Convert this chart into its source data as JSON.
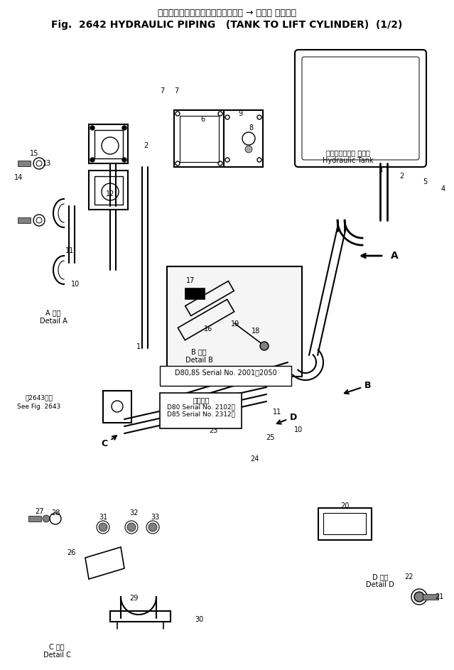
{
  "title_japanese": "ハイドロリックパイピング　タンク → リフト シリンダ",
  "title_english": "Fig.  2642 HYDRAULIC PIPING   (TANK TO LIFT CYLINDER)  (1/2)",
  "bg_color": "#ffffff",
  "line_color": "#000000",
  "fig_width": 6.39,
  "fig_height": 9.43,
  "dpi": 100,
  "hydraulic_tank_label_jp": "ハイドロリック タンク",
  "hydraulic_tank_label_en": "Hydraulic Tank",
  "detail_a_jp": "A 詳細",
  "detail_a_en": "Detail A",
  "detail_b_jp": "B 詳細",
  "detail_b_en": "Detail B",
  "detail_c_jp": "C 詳細",
  "detail_c_en": "Detail C",
  "detail_d_jp": "D 詳細",
  "detail_d_en": "Detail D",
  "serial_note_1": "D80,85 Serial No. 2001～2050",
  "serial_note_2": "適用号機",
  "serial_note_3": "D80 Serial No. 2102～",
  "serial_note_4": "D85 Serial No. 2312～",
  "see_fig_jp": "図2643参照",
  "see_fig_en": "See Fig. 2643",
  "arrow_a": "A",
  "arrow_b": "B",
  "arrow_c": "C",
  "arrow_d": "D"
}
